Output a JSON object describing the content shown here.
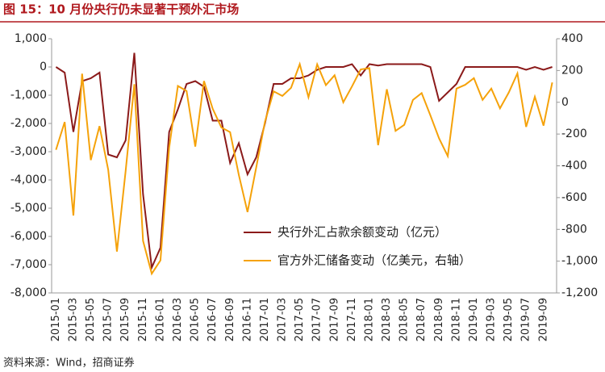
{
  "chart_data": {
    "type": "line",
    "title": "图 15：10 月份央行仍未显著干预外汇市场",
    "source": "资料来源：Wind，招商证券",
    "categories": [
      "2015-01",
      null,
      "2015-03",
      null,
      "2015-05",
      null,
      "2015-07",
      null,
      "2015-09",
      null,
      "2015-11",
      null,
      "2016-01",
      null,
      "2016-03",
      null,
      "2016-05",
      null,
      "2016-07",
      null,
      "2016-09",
      null,
      "2016-11",
      null,
      "2017-01",
      null,
      "2017-03",
      null,
      "2017-05",
      null,
      "2017-07",
      null,
      "2017-09",
      null,
      "2017-11",
      null,
      "2018-01",
      null,
      "2018-03",
      null,
      "2018-05",
      null,
      "2018-07",
      null,
      "2018-09",
      null,
      "2018-11",
      null,
      "2019-01",
      null,
      "2019-03",
      null,
      "2019-05",
      null,
      "2019-07",
      null,
      "2019-09",
      null
    ],
    "series": [
      {
        "name": "央行外汇占款余额变动（亿元）",
        "color": "#8b1a1a",
        "axis": "y",
        "values": [
          0,
          -200,
          -2300,
          -500,
          -400,
          -200,
          -3100,
          -3200,
          -2600,
          500,
          -4500,
          -7100,
          -6400,
          -2300,
          -1500,
          -600,
          -500,
          -700,
          -1900,
          -1900,
          -3400,
          -2700,
          -3800,
          -3200,
          -2000,
          -600,
          -600,
          -400,
          -400,
          -300,
          -100,
          0,
          0,
          0,
          100,
          -300,
          100,
          50,
          100,
          100,
          100,
          100,
          100,
          0,
          -1200,
          -900,
          -600,
          0,
          0,
          0,
          0,
          0,
          0,
          0,
          -100,
          0,
          -100,
          0
        ]
      },
      {
        "name": "官方外汇储备变动（亿美元，右轴）",
        "color": "#f5a20a",
        "axis": "y2",
        "values": [
          -299,
          -124,
          -713,
          180,
          -364,
          -150,
          -425,
          -940,
          -433,
          114,
          -872,
          -1079,
          -995,
          -286,
          103,
          71,
          -279,
          134,
          -41,
          -159,
          -188,
          -457,
          -691,
          -410,
          -123,
          69,
          40,
          91,
          240,
          32,
          239,
          108,
          170,
          0,
          100,
          207,
          215,
          -270,
          82,
          -180,
          -142,
          15,
          58,
          -82,
          -227,
          -339,
          86,
          110,
          152,
          15,
          86,
          -38,
          61,
          182,
          -155,
          35,
          -147,
          125
        ]
      }
    ],
    "ylim": [
      -8000,
      1000
    ],
    "yticks": [
      {
        "value": 1000,
        "label": "1,000"
      },
      0,
      {
        "value": -1000,
        "label": "-1,000"
      },
      {
        "value": -2000,
        "label": "-2,000"
      },
      {
        "value": -3000,
        "label": "-3,000"
      },
      {
        "value": -4000,
        "label": "-4,000"
      },
      {
        "value": -5000,
        "label": "-5,000"
      },
      {
        "value": -6000,
        "label": "-6,000"
      },
      {
        "value": -7000,
        "label": "-7,000"
      },
      {
        "value": -8000,
        "label": "-8,000"
      }
    ],
    "y2lim": [
      -1200,
      400
    ],
    "y2ticks": [
      400,
      200,
      0,
      -200,
      -400,
      -600,
      -800,
      {
        "value": -1000,
        "label": "-1,000"
      },
      {
        "value": -1200,
        "label": "-1,200"
      }
    ]
  }
}
